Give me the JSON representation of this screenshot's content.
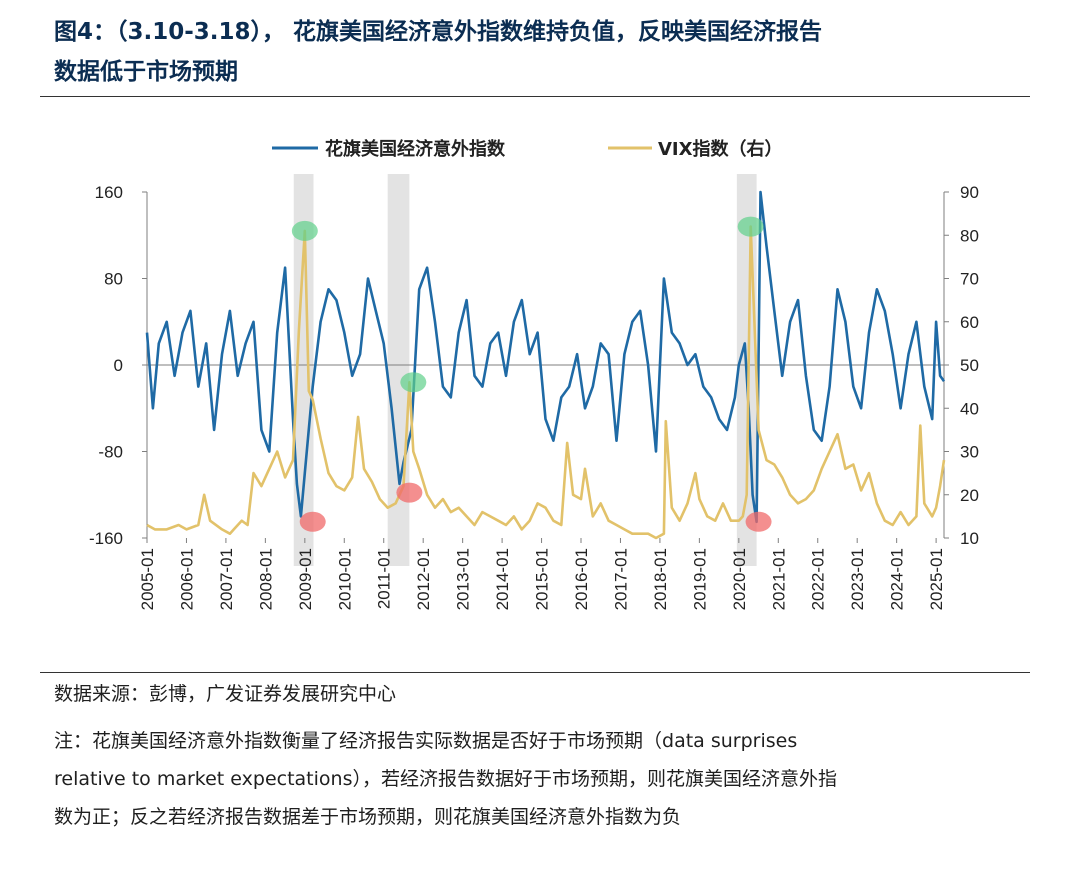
{
  "figure": {
    "title_line1": "图4：（3.10-3.18）， 花旗美国经济意外指数维持负值，反映美国经济报告",
    "title_line2": "数据低于市场预期",
    "source": "数据来源：彭博，广发证券发展研究中心",
    "note_lines": [
      "注：花旗美国经济意外指数衡量了经济报告实际数据是否好于市场预期（data surprises",
      "relative to market expectations），若经济报告数据好于市场预期，则花旗美国经济意外指",
      "数为正；反之若经济报告数据差于市场预期，则花旗美国经济意外指数为负"
    ]
  },
  "chart_data": {
    "type": "line",
    "x_tick_labels": [
      "2005-01",
      "2006-01",
      "2007-01",
      "2008-01",
      "2009-01",
      "2010-01",
      "2011-01",
      "2012-01",
      "2013-01",
      "2014-01",
      "2015-01",
      "2016-01",
      "2017-01",
      "2018-01",
      "2019-01",
      "2020-01",
      "2021-01",
      "2022-01",
      "2023-01",
      "2024-01",
      "2025-01"
    ],
    "y_left": {
      "ticks": [
        160,
        80,
        0,
        -80,
        -160
      ],
      "range": [
        -160,
        160
      ]
    },
    "y_right": {
      "ticks": [
        90,
        80,
        70,
        60,
        50,
        40,
        30,
        20,
        10
      ],
      "range": [
        10,
        90
      ]
    },
    "legend_position": "top-center",
    "grid": false,
    "series": [
      {
        "name": "花旗美国经济意外指数",
        "axis": "left",
        "color": "#1f6aa5",
        "x": [
          2005.0,
          2005.15,
          2005.3,
          2005.5,
          2005.7,
          2005.9,
          2006.1,
          2006.3,
          2006.5,
          2006.7,
          2006.9,
          2007.1,
          2007.3,
          2007.5,
          2007.7,
          2007.9,
          2008.1,
          2008.3,
          2008.5,
          2008.7,
          2008.8,
          2008.9,
          2009.0,
          2009.2,
          2009.4,
          2009.6,
          2009.8,
          2010.0,
          2010.2,
          2010.4,
          2010.6,
          2010.8,
          2011.0,
          2011.2,
          2011.4,
          2011.5,
          2011.7,
          2011.9,
          2012.1,
          2012.3,
          2012.5,
          2012.7,
          2012.9,
          2013.1,
          2013.3,
          2013.5,
          2013.7,
          2013.9,
          2014.1,
          2014.3,
          2014.5,
          2014.7,
          2014.9,
          2015.1,
          2015.3,
          2015.5,
          2015.7,
          2015.9,
          2016.1,
          2016.3,
          2016.5,
          2016.7,
          2016.9,
          2017.1,
          2017.3,
          2017.5,
          2017.7,
          2017.9,
          2018.1,
          2018.3,
          2018.5,
          2018.7,
          2018.9,
          2019.1,
          2019.3,
          2019.5,
          2019.7,
          2019.9,
          2020.0,
          2020.15,
          2020.25,
          2020.35,
          2020.45,
          2020.55,
          2020.7,
          2020.9,
          2021.1,
          2021.3,
          2021.5,
          2021.7,
          2021.9,
          2022.1,
          2022.3,
          2022.5,
          2022.7,
          2022.9,
          2023.1,
          2023.3,
          2023.5,
          2023.7,
          2023.9,
          2024.1,
          2024.3,
          2024.5,
          2024.7,
          2024.9,
          2025.0,
          2025.1,
          2025.2
        ],
        "y": [
          30,
          -40,
          20,
          40,
          -10,
          30,
          50,
          -20,
          20,
          -60,
          10,
          50,
          -10,
          20,
          40,
          -60,
          -80,
          30,
          90,
          -50,
          -110,
          -140,
          -100,
          -20,
          40,
          70,
          60,
          30,
          -10,
          10,
          80,
          50,
          20,
          -40,
          -110,
          -90,
          -60,
          70,
          90,
          40,
          -20,
          -30,
          30,
          60,
          -10,
          -20,
          20,
          30,
          -10,
          40,
          60,
          10,
          30,
          -50,
          -70,
          -30,
          -20,
          10,
          -40,
          -20,
          20,
          10,
          -70,
          10,
          40,
          50,
          0,
          -80,
          80,
          30,
          20,
          0,
          10,
          -20,
          -30,
          -50,
          -60,
          -30,
          0,
          20,
          -40,
          -120,
          -145,
          160,
          110,
          50,
          -10,
          40,
          60,
          -10,
          -60,
          -70,
          -20,
          70,
          40,
          -20,
          -40,
          30,
          70,
          50,
          10,
          -40,
          10,
          40,
          -20,
          -50,
          40,
          -10,
          -15
        ],
        "highlights": [
          {
            "x": 2009.2,
            "y": -145,
            "color": "red"
          },
          {
            "x": 2011.65,
            "y": -118,
            "color": "red"
          },
          {
            "x": 2020.5,
            "y": -145,
            "color": "red"
          }
        ]
      },
      {
        "name": "VIX指数（右）",
        "axis": "right",
        "color": "#e2c26a",
        "x": [
          2005.0,
          2005.2,
          2005.5,
          2005.8,
          2006.0,
          2006.3,
          2006.45,
          2006.6,
          2006.9,
          2007.1,
          2007.2,
          2007.4,
          2007.55,
          2007.7,
          2007.9,
          2008.1,
          2008.3,
          2008.5,
          2008.7,
          2008.85,
          2009.0,
          2009.1,
          2009.2,
          2009.4,
          2009.6,
          2009.8,
          2010.0,
          2010.2,
          2010.35,
          2010.5,
          2010.7,
          2010.9,
          2011.1,
          2011.3,
          2011.5,
          2011.65,
          2011.75,
          2011.9,
          2012.1,
          2012.3,
          2012.5,
          2012.7,
          2012.9,
          2013.1,
          2013.3,
          2013.5,
          2013.7,
          2013.9,
          2014.1,
          2014.3,
          2014.5,
          2014.7,
          2014.9,
          2015.1,
          2015.3,
          2015.5,
          2015.65,
          2015.8,
          2016.0,
          2016.1,
          2016.3,
          2016.5,
          2016.7,
          2016.9,
          2017.1,
          2017.3,
          2017.5,
          2017.7,
          2017.9,
          2018.1,
          2018.15,
          2018.3,
          2018.5,
          2018.7,
          2018.9,
          2019.0,
          2019.2,
          2019.4,
          2019.6,
          2019.8,
          2020.0,
          2020.1,
          2020.2,
          2020.3,
          2020.5,
          2020.7,
          2020.9,
          2021.1,
          2021.3,
          2021.5,
          2021.7,
          2021.9,
          2022.1,
          2022.3,
          2022.5,
          2022.7,
          2022.9,
          2023.1,
          2023.3,
          2023.5,
          2023.7,
          2023.9,
          2024.1,
          2024.3,
          2024.5,
          2024.6,
          2024.7,
          2024.9,
          2025.0,
          2025.1,
          2025.2
        ],
        "y": [
          13,
          12,
          12,
          13,
          12,
          13,
          20,
          14,
          12,
          11,
          12,
          14,
          13,
          25,
          22,
          26,
          30,
          24,
          28,
          58,
          81,
          44,
          42,
          33,
          25,
          22,
          21,
          24,
          38,
          26,
          23,
          19,
          17,
          18,
          22,
          46,
          30,
          26,
          20,
          17,
          19,
          16,
          17,
          15,
          13,
          16,
          15,
          14,
          13,
          15,
          12,
          14,
          18,
          17,
          14,
          13,
          32,
          20,
          19,
          26,
          15,
          18,
          14,
          13,
          12,
          11,
          11,
          11,
          10,
          11,
          37,
          17,
          14,
          18,
          25,
          19,
          15,
          14,
          18,
          14,
          14,
          15,
          20,
          82,
          35,
          28,
          27,
          24,
          20,
          18,
          19,
          21,
          26,
          30,
          34,
          26,
          27,
          21,
          25,
          18,
          14,
          13,
          16,
          13,
          15,
          36,
          18,
          15,
          17,
          22,
          28
        ]
      }
    ]
  }
}
